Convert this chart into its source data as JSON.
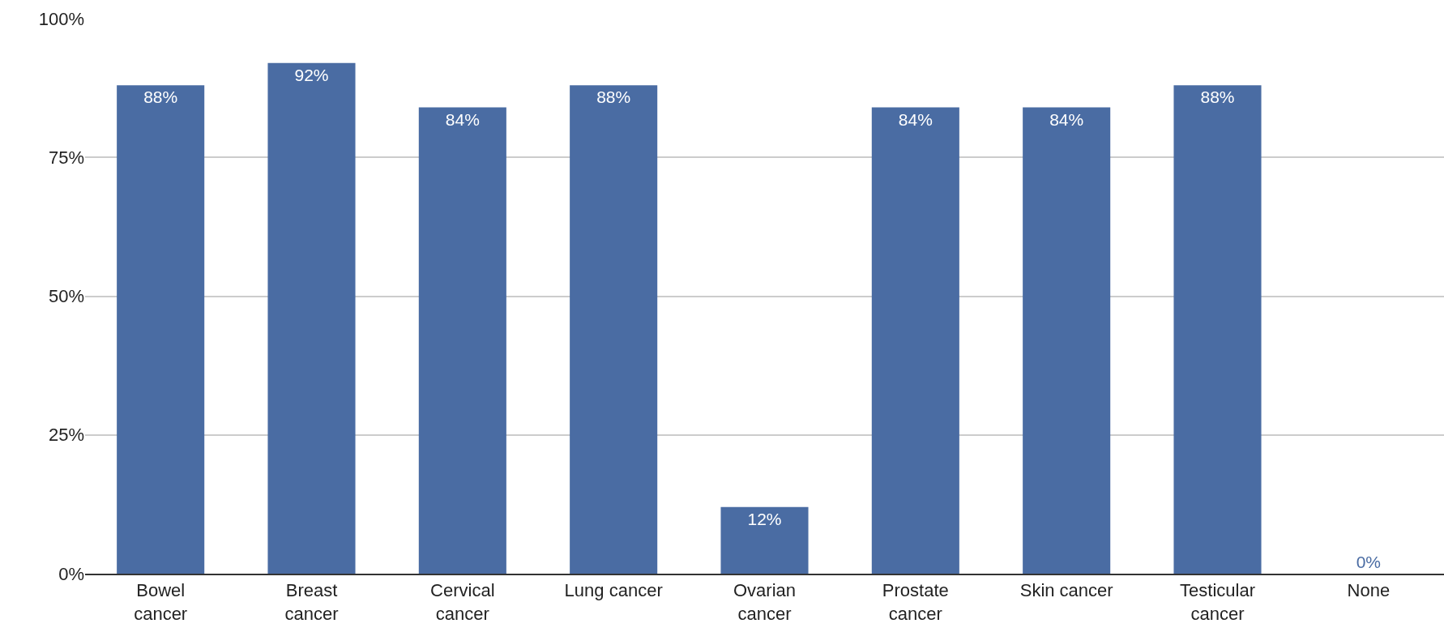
{
  "chart_data": {
    "type": "bar",
    "categories": [
      "Bowel cancer",
      "Breast cancer",
      "Cervical cancer",
      "Lung cancer",
      "Ovarian cancer",
      "Prostate cancer",
      "Skin cancer",
      "Testicular cancer",
      "None"
    ],
    "values": [
      88,
      92,
      84,
      88,
      12,
      84,
      84,
      88,
      0
    ],
    "value_labels": [
      "88%",
      "92%",
      "84%",
      "88%",
      "12%",
      "84%",
      "84%",
      "88%",
      "0%"
    ],
    "color": "#4a6ca3",
    "ylim": [
      0,
      100
    ],
    "yticks": [
      {
        "value": 0,
        "label": "0%"
      },
      {
        "value": 25,
        "label": "25%"
      },
      {
        "value": 50,
        "label": "50%"
      },
      {
        "value": 75,
        "label": "75%"
      },
      {
        "value": 100,
        "label": "100%"
      }
    ],
    "grid": "y",
    "legend": false
  }
}
